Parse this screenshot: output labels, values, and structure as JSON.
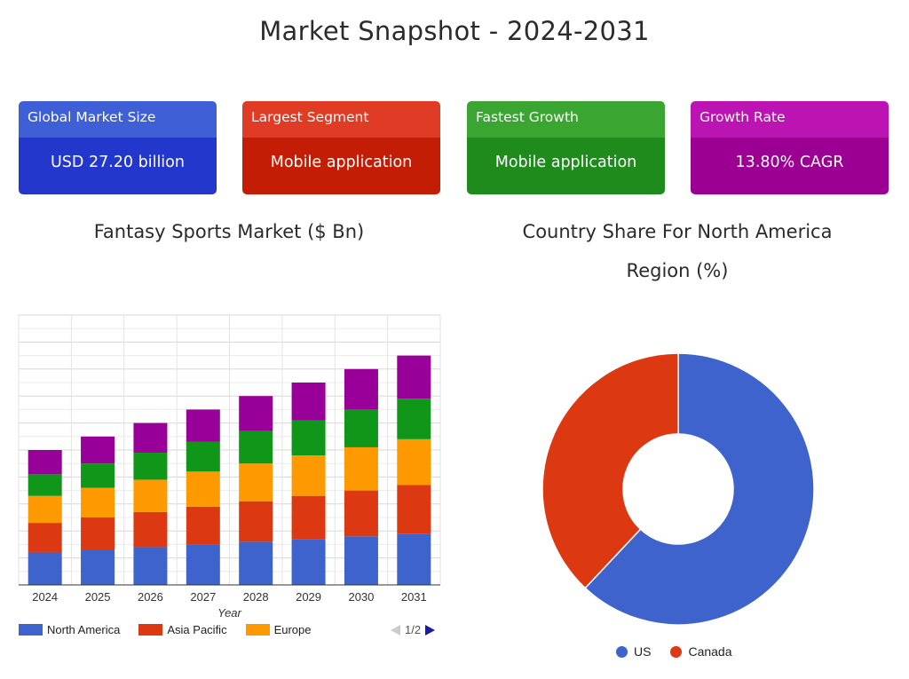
{
  "page": {
    "title": "Market Snapshot - 2024-2031"
  },
  "cards": [
    {
      "label": "Global Market Size",
      "value": "USD 27.20 billion",
      "head_color": "#3e5fd6",
      "body_color": "#2437cc"
    },
    {
      "label": "Largest Segment",
      "value": "Mobile application",
      "head_color": "#e03c25",
      "body_color": "#c41d05"
    },
    {
      "label": "Fastest Growth",
      "value": "Mobile application",
      "head_color": "#3ba532",
      "body_color": "#1f8b1d"
    },
    {
      "label": "Growth Rate",
      "value": "13.80% CAGR",
      "head_color": "#bc14b3",
      "body_color": "#9c0093"
    }
  ],
  "bar_section": {
    "title": "Fantasy Sports Market ($ Bn)"
  },
  "donut_section": {
    "title_line1": "Country Share For North America",
    "title_line2": "Region (%)"
  },
  "legend_pager": "1/2",
  "chart_data": [
    {
      "type": "bar",
      "stacked": true,
      "title": "Fantasy Sports Market ($ Bn)",
      "xlabel": "Year",
      "ylabel": "",
      "categories": [
        "2024",
        "2025",
        "2026",
        "2027",
        "2028",
        "2029",
        "2030",
        "2031"
      ],
      "ylim": [
        0,
        10
      ],
      "grid": true,
      "legend": "bottom",
      "series": [
        {
          "name": "North America",
          "color": "#3e63cc",
          "values": [
            1.2,
            1.3,
            1.4,
            1.5,
            1.6,
            1.7,
            1.8,
            1.9
          ]
        },
        {
          "name": "Asia Pacific",
          "color": "#dc3912",
          "values": [
            1.1,
            1.2,
            1.3,
            1.4,
            1.5,
            1.6,
            1.7,
            1.8
          ]
        },
        {
          "name": "Europe",
          "color": "#ff9900",
          "values": [
            1.0,
            1.1,
            1.2,
            1.3,
            1.4,
            1.5,
            1.6,
            1.7
          ]
        },
        {
          "name": "",
          "color": "#109618",
          "values": [
            0.8,
            0.9,
            1.0,
            1.1,
            1.2,
            1.3,
            1.4,
            1.5
          ]
        },
        {
          "name": "",
          "color": "#990099",
          "values": [
            0.9,
            1.0,
            1.1,
            1.2,
            1.3,
            1.4,
            1.5,
            1.6
          ]
        }
      ]
    },
    {
      "type": "pie",
      "donut": true,
      "title": "Country Share For North America Region (%)",
      "legend": "bottom",
      "labels": [
        "US",
        "Canada"
      ],
      "values": [
        62,
        38
      ],
      "colors": [
        "#3e63cc",
        "#dc3912"
      ]
    }
  ]
}
